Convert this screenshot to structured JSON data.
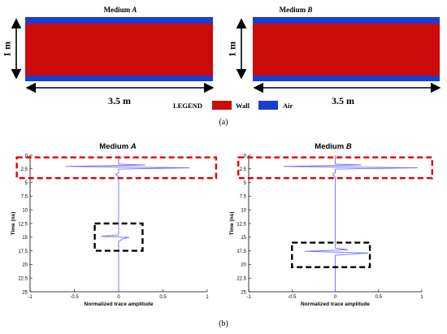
{
  "panel_a": {
    "label": "(a)",
    "medium_a_title": "Medium",
    "medium_a_letter": "A",
    "medium_b_title": "Medium",
    "medium_b_letter": "B",
    "height_label": "1 m",
    "width_label_left": "3.5 m",
    "width_label_right": "3.5 m",
    "legend": {
      "title": "LEGEND",
      "items": [
        {
          "label": "Wall",
          "color": "#cc0b0b"
        },
        {
          "label": "Air",
          "color": "#1a3fd0"
        }
      ]
    }
  },
  "panel_b": {
    "label": "(b)"
  },
  "colors": {
    "wall": "#cc0b0b",
    "air": "#1a3fd0",
    "trace": "#6a6aff",
    "highlight_red": "#e00000",
    "highlight_black": "#000000"
  },
  "chart_data": [
    {
      "type": "line",
      "title": "Medium A",
      "title_word": "Medium",
      "title_letter": "A",
      "xlabel": "Normalized trace amplitude",
      "ylabel": "Time (ns)",
      "xlim": [
        -1,
        1
      ],
      "ylim": [
        0,
        25
      ],
      "y_inverted": true,
      "xticks": [
        -1,
        -0.5,
        0,
        0.5,
        1
      ],
      "xtick_labels": [
        "-1",
        "-0.5",
        "0",
        "0.5",
        "1"
      ],
      "yticks": [
        0,
        2.5,
        5,
        7.5,
        10,
        12.5,
        15,
        17.5,
        20,
        22.5,
        25
      ],
      "ytick_labels": [
        "0",
        "2.5",
        "5",
        "7.5",
        "10",
        "12.5",
        "15",
        "17.5",
        "20",
        "22.5",
        "25"
      ],
      "series": [
        {
          "x": [
            0,
            0,
            0.3,
            -0.6,
            0.8,
            0,
            0,
            0,
            -0.03,
            0,
            0,
            0,
            -0.2,
            0.12,
            0.05,
            0,
            0,
            0
          ],
          "y": [
            0,
            1.6,
            1.8,
            2.05,
            2.3,
            2.55,
            2.9,
            3.2,
            3.5,
            4.0,
            12,
            14.6,
            14.85,
            15.05,
            15.3,
            15.8,
            20,
            25
          ]
        }
      ],
      "highlights": [
        {
          "color": "red",
          "x": [
            -1.15,
            1.1
          ],
          "y": [
            0.4,
            4.2
          ]
        },
        {
          "color": "black",
          "x": [
            -0.27,
            0.27
          ],
          "y": [
            12.5,
            17.5
          ]
        }
      ]
    },
    {
      "type": "line",
      "title": "Medium B",
      "title_word": "Medium",
      "title_letter": "B",
      "xlabel": "Normalized trace amplitude",
      "ylabel": "Time (ns)",
      "xlim": [
        -1,
        1
      ],
      "ylim": [
        0,
        25
      ],
      "y_inverted": true,
      "xticks": [
        -1,
        -0.5,
        0,
        0.5,
        1
      ],
      "xtick_labels": [
        "-1",
        "-0.5",
        "0",
        "0.5",
        "1"
      ],
      "yticks": [
        0,
        2.5,
        5,
        7.5,
        10,
        12.5,
        15,
        17.5,
        20,
        22.5,
        25
      ],
      "ytick_labels": [
        "0",
        "2.5",
        "5",
        "7.5",
        "10",
        "12.5",
        "15",
        "17.5",
        "20",
        "22.5",
        "25"
      ],
      "series": [
        {
          "x": [
            0,
            0,
            0.3,
            -0.6,
            0.95,
            0,
            0,
            0,
            -0.03,
            0,
            0,
            0,
            0.15,
            -0.35,
            0.38,
            0,
            0,
            0
          ],
          "y": [
            0,
            1.6,
            1.8,
            2.05,
            2.3,
            2.55,
            2.9,
            3.2,
            3.5,
            4.0,
            15,
            17.0,
            17.3,
            17.6,
            17.9,
            18.3,
            20,
            25
          ]
        }
      ],
      "highlights": [
        {
          "color": "red",
          "x": [
            -1.12,
            1.12
          ],
          "y": [
            0.4,
            4.2
          ]
        },
        {
          "color": "black",
          "x": [
            -0.5,
            0.4
          ],
          "y": [
            16.0,
            20.5
          ]
        }
      ]
    }
  ]
}
